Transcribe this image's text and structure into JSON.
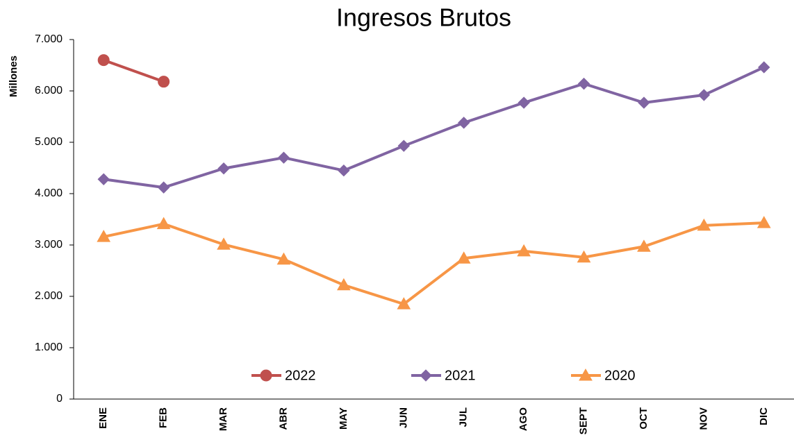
{
  "chart_data": {
    "type": "line",
    "title": "Ingresos Brutos",
    "y_label": "Millones",
    "categories": [
      "ENE",
      "FEB",
      "MAR",
      "ABR",
      "MAY",
      "JUN",
      "JUL",
      "AGO",
      "SEPT",
      "OCT",
      "NOV",
      "DIC"
    ],
    "series": [
      {
        "name": "2022",
        "color": "#c0504d",
        "marker": "circle",
        "values": [
          6600,
          6180,
          null,
          null,
          null,
          null,
          null,
          null,
          null,
          null,
          null,
          null
        ]
      },
      {
        "name": "2021",
        "color": "#8064a2",
        "marker": "diamond",
        "values": [
          4280,
          4120,
          4490,
          4700,
          4450,
          4930,
          5380,
          5770,
          6140,
          5770,
          5920,
          6460
        ]
      },
      {
        "name": "2020",
        "color": "#f79646",
        "marker": "triangle",
        "values": [
          3160,
          3410,
          3010,
          2720,
          2220,
          1850,
          2740,
          2880,
          2760,
          2970,
          3380,
          3430
        ]
      }
    ],
    "ylim": [
      0,
      7000
    ],
    "yticks": [
      0,
      {
        "value": 1000,
        "label": "1.000"
      },
      {
        "value": 2000,
        "label": "2.000"
      },
      {
        "value": 3000,
        "label": "3.000"
      },
      {
        "value": 4000,
        "label": "4.000"
      },
      {
        "value": 5000,
        "label": "5.000"
      },
      {
        "value": 6000,
        "label": "6.000"
      },
      {
        "value": 7000,
        "label": "7.000"
      }
    ],
    "grid": false,
    "legend": "bottom"
  }
}
